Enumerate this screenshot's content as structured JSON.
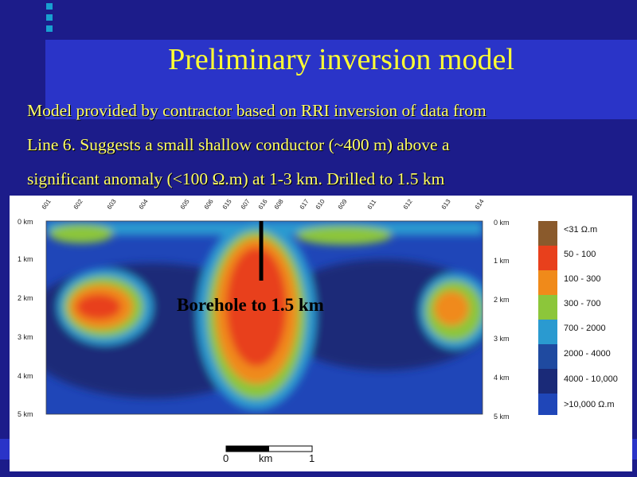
{
  "slide": {
    "title": "Preliminary inversion model",
    "body_lines": [
      "Model provided by contractor based on RRI inversion of data from",
      "Line 6. Suggests a small shallow conductor (~400 m) above a",
      "significant anomaly (<100 Ω.m) at 1-3 km. Drilled to 1.5 km"
    ]
  },
  "figure": {
    "stations": [
      "601",
      "602",
      "603",
      "604",
      "605",
      "606",
      "615",
      "607",
      "616",
      "608",
      "617",
      "610",
      "609",
      "611",
      "612",
      "613",
      "614"
    ],
    "depth_left": [
      "0 km",
      "1 km",
      "2 km",
      "3 km",
      "4 km",
      "5 km"
    ],
    "depth_right": [
      "0 km",
      "1 km",
      "2 km",
      "3 km",
      "4 km",
      "5 km"
    ],
    "borehole_label": "Borehole to 1.5 km",
    "scale": {
      "start": "0",
      "unit": "km",
      "end": "1"
    },
    "legend": [
      {
        "label": "<31 Ω.m",
        "color": "#8a5a2c"
      },
      {
        "label": "50 - 100",
        "color": "#e8401c"
      },
      {
        "label": "100 - 300",
        "color": "#f08a1a"
      },
      {
        "label": "300 - 700",
        "color": "#8cc63a"
      },
      {
        "label": "700 - 2000",
        "color": "#2a9ad0"
      },
      {
        "label": "2000 - 4000",
        "color": "#1f4aa0"
      },
      {
        "label": "4000 - 10,000",
        "color": "#1a2a78"
      },
      {
        "label": ">10,000 Ω.m",
        "color": "#1f46b8"
      }
    ]
  },
  "colors": {
    "background": "#1c1c8a",
    "band": "#2a34c8",
    "title": "#ffff33",
    "text": "#ffff66"
  }
}
